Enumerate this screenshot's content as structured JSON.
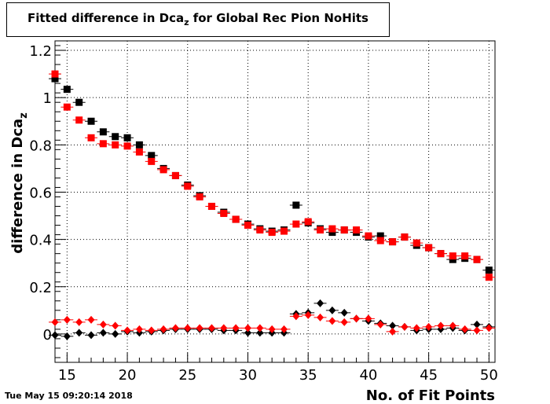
{
  "chart_data": {
    "type": "scatter",
    "title": "Fitted difference in Dca",
    "title_subscript": "z",
    "title_suffix": " for Global Rec Pion NoHits",
    "xlabel": "No. of Fit Points",
    "ylabel": "difference in Dca",
    "ylabel_subscript": "z",
    "xlim": [
      14,
      50.5
    ],
    "ylim": [
      -0.12,
      1.24
    ],
    "xticks": [
      15,
      20,
      25,
      30,
      35,
      40,
      45,
      50
    ],
    "yticks": [
      0,
      0.2,
      0.4,
      0.6,
      0.8,
      1,
      1.2
    ],
    "ytick_labels": [
      "0",
      "0.2",
      "0.4",
      "0.6",
      "0.8",
      "1",
      "1.2"
    ],
    "grid": true,
    "x": [
      14,
      15,
      16,
      17,
      18,
      19,
      20,
      21,
      22,
      23,
      24,
      25,
      26,
      27,
      28,
      29,
      30,
      31,
      32,
      33,
      34,
      35,
      36,
      37,
      38,
      39,
      40,
      41,
      42,
      43,
      44,
      45,
      46,
      47,
      48,
      49,
      50
    ],
    "series": [
      {
        "marker": "square",
        "color": "#000000",
        "values": [
          1.08,
          1.035,
          0.98,
          0.9,
          0.855,
          0.835,
          0.83,
          0.8,
          0.755,
          0.7,
          0.67,
          0.63,
          0.585,
          0.54,
          0.515,
          0.485,
          0.465,
          0.445,
          0.435,
          0.44,
          0.545,
          0.47,
          0.445,
          0.43,
          0.44,
          0.43,
          0.41,
          0.415,
          0.39,
          0.41,
          0.375,
          0.365,
          0.34,
          0.315,
          0.32,
          0.315,
          0.27
        ]
      },
      {
        "marker": "square",
        "color": "#ff0000",
        "values": [
          1.1,
          0.96,
          0.905,
          0.83,
          0.805,
          0.8,
          0.795,
          0.77,
          0.73,
          0.695,
          0.67,
          0.625,
          0.58,
          0.54,
          0.51,
          0.485,
          0.46,
          0.44,
          0.43,
          0.435,
          0.465,
          0.475,
          0.44,
          0.445,
          0.44,
          0.44,
          0.415,
          0.395,
          0.39,
          0.41,
          0.385,
          0.365,
          0.34,
          0.33,
          0.33,
          0.315,
          0.24
        ]
      },
      {
        "marker": "diamond",
        "color": "#000000",
        "values": [
          -0.005,
          -0.01,
          0.005,
          -0.005,
          0.005,
          0.0,
          0.01,
          0.005,
          0.01,
          0.015,
          0.02,
          0.02,
          0.02,
          0.02,
          0.015,
          0.015,
          0.005,
          0.005,
          0.005,
          0.005,
          0.085,
          0.09,
          0.13,
          0.1,
          0.09,
          0.065,
          0.055,
          0.045,
          0.035,
          0.03,
          0.015,
          0.02,
          0.02,
          0.025,
          0.015,
          0.04,
          0.03
        ]
      },
      {
        "marker": "diamond",
        "color": "#ff0000",
        "values": [
          0.05,
          0.06,
          0.05,
          0.06,
          0.04,
          0.035,
          0.015,
          0.02,
          0.015,
          0.02,
          0.025,
          0.025,
          0.025,
          0.025,
          0.025,
          0.025,
          0.025,
          0.025,
          0.02,
          0.02,
          0.075,
          0.08,
          0.07,
          0.055,
          0.05,
          0.065,
          0.065,
          0.04,
          0.01,
          0.03,
          0.025,
          0.03,
          0.035,
          0.035,
          0.02,
          0.015,
          0.025
        ]
      }
    ]
  },
  "footer": {
    "timestamp": "Tue May 15 09:20:14 2018"
  }
}
